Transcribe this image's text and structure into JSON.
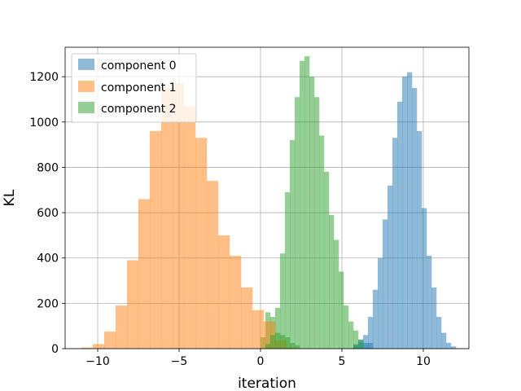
{
  "chart_data": {
    "type": "bar",
    "title": "",
    "xlabel": "iteration",
    "ylabel": "KL",
    "xlim": [
      -12,
      12.8
    ],
    "ylim": [
      0,
      1330
    ],
    "grid": true,
    "legend_position": "top-left",
    "x_ticks": [
      -10,
      -5,
      0,
      5,
      10
    ],
    "x_tick_labels": [
      "−10",
      "−5",
      "0",
      "5",
      "10"
    ],
    "y_ticks": [
      0,
      200,
      400,
      600,
      800,
      1000,
      1200
    ],
    "y_tick_labels": [
      "0",
      "200",
      "400",
      "600",
      "800",
      "1000",
      "1200"
    ],
    "series": [
      {
        "name": "component 2",
        "color": "#2ca02c",
        "bin_start": 0.0,
        "bin_width": 0.3,
        "counts": [
          50,
          160,
          140,
          70,
          60,
          50,
          25,
          15
        ]
      },
      {
        "name": "component 0",
        "color": "#1f77b4",
        "bin_start": 5.7,
        "bin_width": 0.3,
        "counts": [
          20,
          40,
          25,
          25
        ]
      },
      {
        "name": "component 1",
        "color": "#ff7f0e",
        "bin_start": -11.0,
        "bin_width": 0.7,
        "counts": [
          5,
          20,
          75,
          190,
          390,
          660,
          960,
          1150,
          1170,
          1070,
          930,
          740,
          500,
          410,
          270,
          170,
          120,
          35,
          5
        ]
      },
      {
        "name": "component 0",
        "color": "#1f77b4",
        "bin_start": 5.7,
        "bin_width": 0.3,
        "counts": [
          15,
          30,
          60,
          140,
          260,
          400,
          570,
          720,
          930,
          1090,
          1200,
          1220,
          1150,
          960,
          620,
          410,
          270,
          140,
          70,
          25,
          10
        ]
      },
      {
        "name": "component 2",
        "color": "#2ca02c",
        "bin_start": 0.3,
        "bin_width": 0.3,
        "counts": [
          20,
          60,
          180,
          420,
          690,
          920,
          1110,
          1270,
          1290,
          1200,
          1110,
          940,
          780,
          590,
          480,
          340,
          190,
          120,
          80,
          40
        ]
      }
    ],
    "legend": [
      {
        "label": "component 0",
        "color": "#1f77b4"
      },
      {
        "label": "component 1",
        "color": "#ff7f0e"
      },
      {
        "label": "component 2",
        "color": "#2ca02c"
      }
    ]
  }
}
